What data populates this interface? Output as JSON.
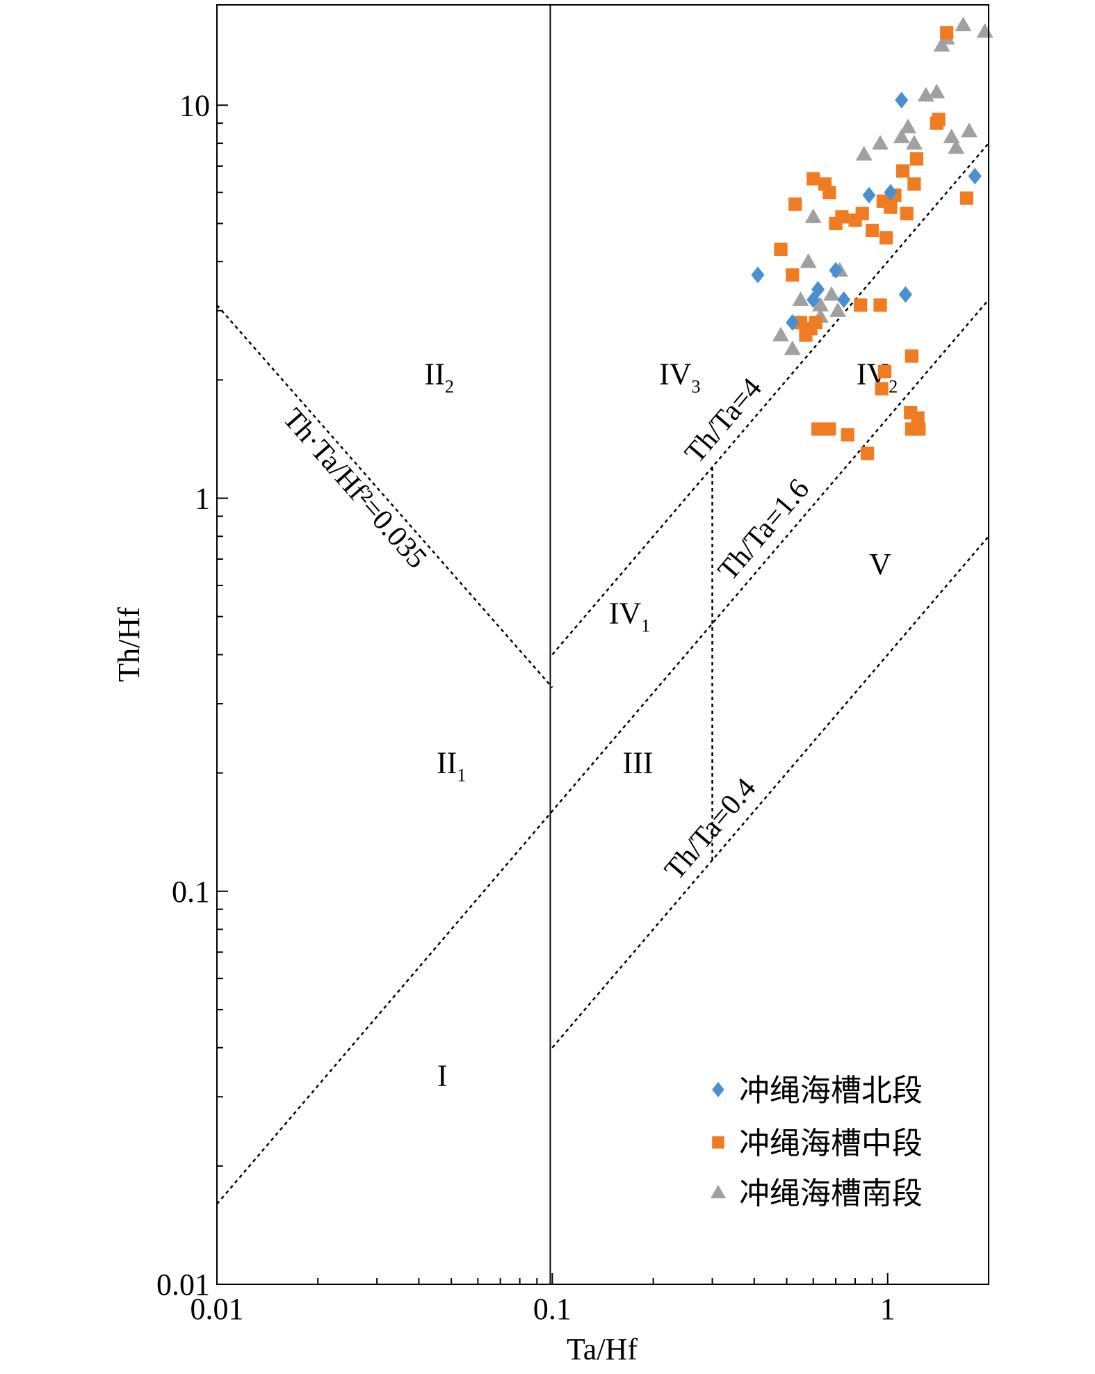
{
  "chart_data": {
    "type": "scatter",
    "xlabel": "Ta/Hf",
    "ylabel": "Th/Hf",
    "x_scale": "log",
    "y_scale": "log",
    "xlim": [
      0.01,
      2
    ],
    "ylim": [
      0.01,
      18
    ],
    "x_ticks": [
      {
        "value": 0.01,
        "label": "0.01"
      },
      {
        "value": 0.1,
        "label": "0.1"
      },
      {
        "value": 1,
        "label": "1"
      }
    ],
    "y_ticks": [
      {
        "value": 0.01,
        "label": "0.01"
      },
      {
        "value": 0.1,
        "label": "0.1"
      },
      {
        "value": 1,
        "label": "1"
      },
      {
        "value": 10,
        "label": "10"
      }
    ],
    "grid": false,
    "legend_position": "bottom-right",
    "reference_lines": [
      {
        "label": "Th·Ta/Hf²=0.035",
        "points": [
          [
            0.01,
            3.1
          ],
          [
            0.1,
            0.33
          ]
        ]
      },
      {
        "label": "Th/Ta=4",
        "points": [
          [
            0.1,
            0.4
          ],
          [
            2,
            8
          ]
        ]
      },
      {
        "label": "Th/Ta=1.6",
        "points": [
          [
            0.01,
            0.016
          ],
          [
            2,
            3.2
          ]
        ]
      },
      {
        "label": "Th/Ta=0.4",
        "points": [
          [
            0.1,
            0.04
          ],
          [
            2,
            0.8
          ]
        ]
      },
      {
        "label": "",
        "points": [
          [
            0.3,
            0.12
          ],
          [
            0.3,
            1.2
          ]
        ]
      }
    ],
    "region_labels": [
      {
        "base": "II",
        "sub": "2",
        "x": 0.046,
        "y": 1.95
      },
      {
        "base": "II",
        "sub": "1",
        "x": 0.05,
        "y": 0.2
      },
      {
        "base": "I",
        "sub": "",
        "x": 0.047,
        "y": 0.032
      },
      {
        "base": "IV",
        "sub": "3",
        "x": 0.24,
        "y": 1.95
      },
      {
        "base": "IV",
        "sub": "1",
        "x": 0.17,
        "y": 0.48
      },
      {
        "base": "III",
        "sub": "",
        "x": 0.18,
        "y": 0.2
      },
      {
        "base": "IV",
        "sub": "2",
        "x": 0.93,
        "y": 1.95
      },
      {
        "base": "V",
        "sub": "",
        "x": 0.95,
        "y": 0.64
      }
    ],
    "series": [
      {
        "name": "冲绳海槽北段",
        "marker": "diamond",
        "color": "#4a90d0",
        "points": [
          [
            0.41,
            3.7
          ],
          [
            0.52,
            2.8
          ],
          [
            0.6,
            3.2
          ],
          [
            0.62,
            3.4
          ],
          [
            0.7,
            3.8
          ],
          [
            0.74,
            3.2
          ],
          [
            0.88,
            5.9
          ],
          [
            1.02,
            6.0
          ],
          [
            1.1,
            10.3
          ],
          [
            1.13,
            3.3
          ],
          [
            1.82,
            6.6
          ]
        ]
      },
      {
        "name": "冲绳海槽中段",
        "marker": "square",
        "color": "#f07c22",
        "points": [
          [
            0.48,
            4.3
          ],
          [
            0.52,
            3.7
          ],
          [
            0.53,
            5.6
          ],
          [
            0.55,
            2.8
          ],
          [
            0.57,
            2.6
          ],
          [
            0.59,
            2.7
          ],
          [
            0.6,
            6.5
          ],
          [
            0.61,
            2.8
          ],
          [
            0.62,
            1.5
          ],
          [
            0.65,
            6.3
          ],
          [
            0.67,
            6.0
          ],
          [
            0.67,
            1.5
          ],
          [
            0.7,
            5.0
          ],
          [
            0.73,
            5.2
          ],
          [
            0.76,
            1.45
          ],
          [
            0.8,
            5.1
          ],
          [
            0.83,
            3.1
          ],
          [
            0.84,
            5.3
          ],
          [
            0.87,
            1.3
          ],
          [
            0.9,
            4.8
          ],
          [
            0.95,
            3.1
          ],
          [
            0.97,
            5.7
          ],
          [
            0.98,
            2.1
          ],
          [
            0.96,
            1.9
          ],
          [
            0.99,
            4.6
          ],
          [
            1.02,
            5.5
          ],
          [
            1.05,
            5.9
          ],
          [
            1.11,
            6.8
          ],
          [
            1.14,
            5.3
          ],
          [
            1.18,
            2.3
          ],
          [
            1.17,
            1.65
          ],
          [
            1.18,
            1.5
          ],
          [
            1.2,
            6.3
          ],
          [
            1.22,
            7.3
          ],
          [
            1.23,
            1.6
          ],
          [
            1.24,
            1.5
          ],
          [
            1.4,
            9.0
          ],
          [
            1.42,
            9.2
          ],
          [
            1.5,
            15.3
          ],
          [
            1.72,
            5.8
          ]
        ]
      },
      {
        "name": "冲绳海槽南段",
        "marker": "triangle",
        "color": "#a0a0a0",
        "points": [
          [
            0.48,
            2.6
          ],
          [
            0.52,
            2.4
          ],
          [
            0.55,
            3.2
          ],
          [
            0.58,
            4.0
          ],
          [
            0.6,
            5.2
          ],
          [
            0.63,
            2.9
          ],
          [
            0.63,
            3.1
          ],
          [
            0.68,
            3.3
          ],
          [
            0.71,
            3.0
          ],
          [
            0.72,
            3.8
          ],
          [
            0.85,
            7.5
          ],
          [
            0.95,
            8.0
          ],
          [
            1.1,
            8.3
          ],
          [
            1.15,
            8.8
          ],
          [
            1.2,
            8.0
          ],
          [
            1.3,
            10.6
          ],
          [
            1.4,
            10.8
          ],
          [
            1.45,
            14.2
          ],
          [
            1.5,
            14.8
          ],
          [
            1.55,
            8.3
          ],
          [
            1.6,
            7.8
          ],
          [
            1.68,
            16.0
          ],
          [
            1.75,
            8.6
          ],
          [
            1.95,
            15.4
          ]
        ]
      }
    ]
  }
}
